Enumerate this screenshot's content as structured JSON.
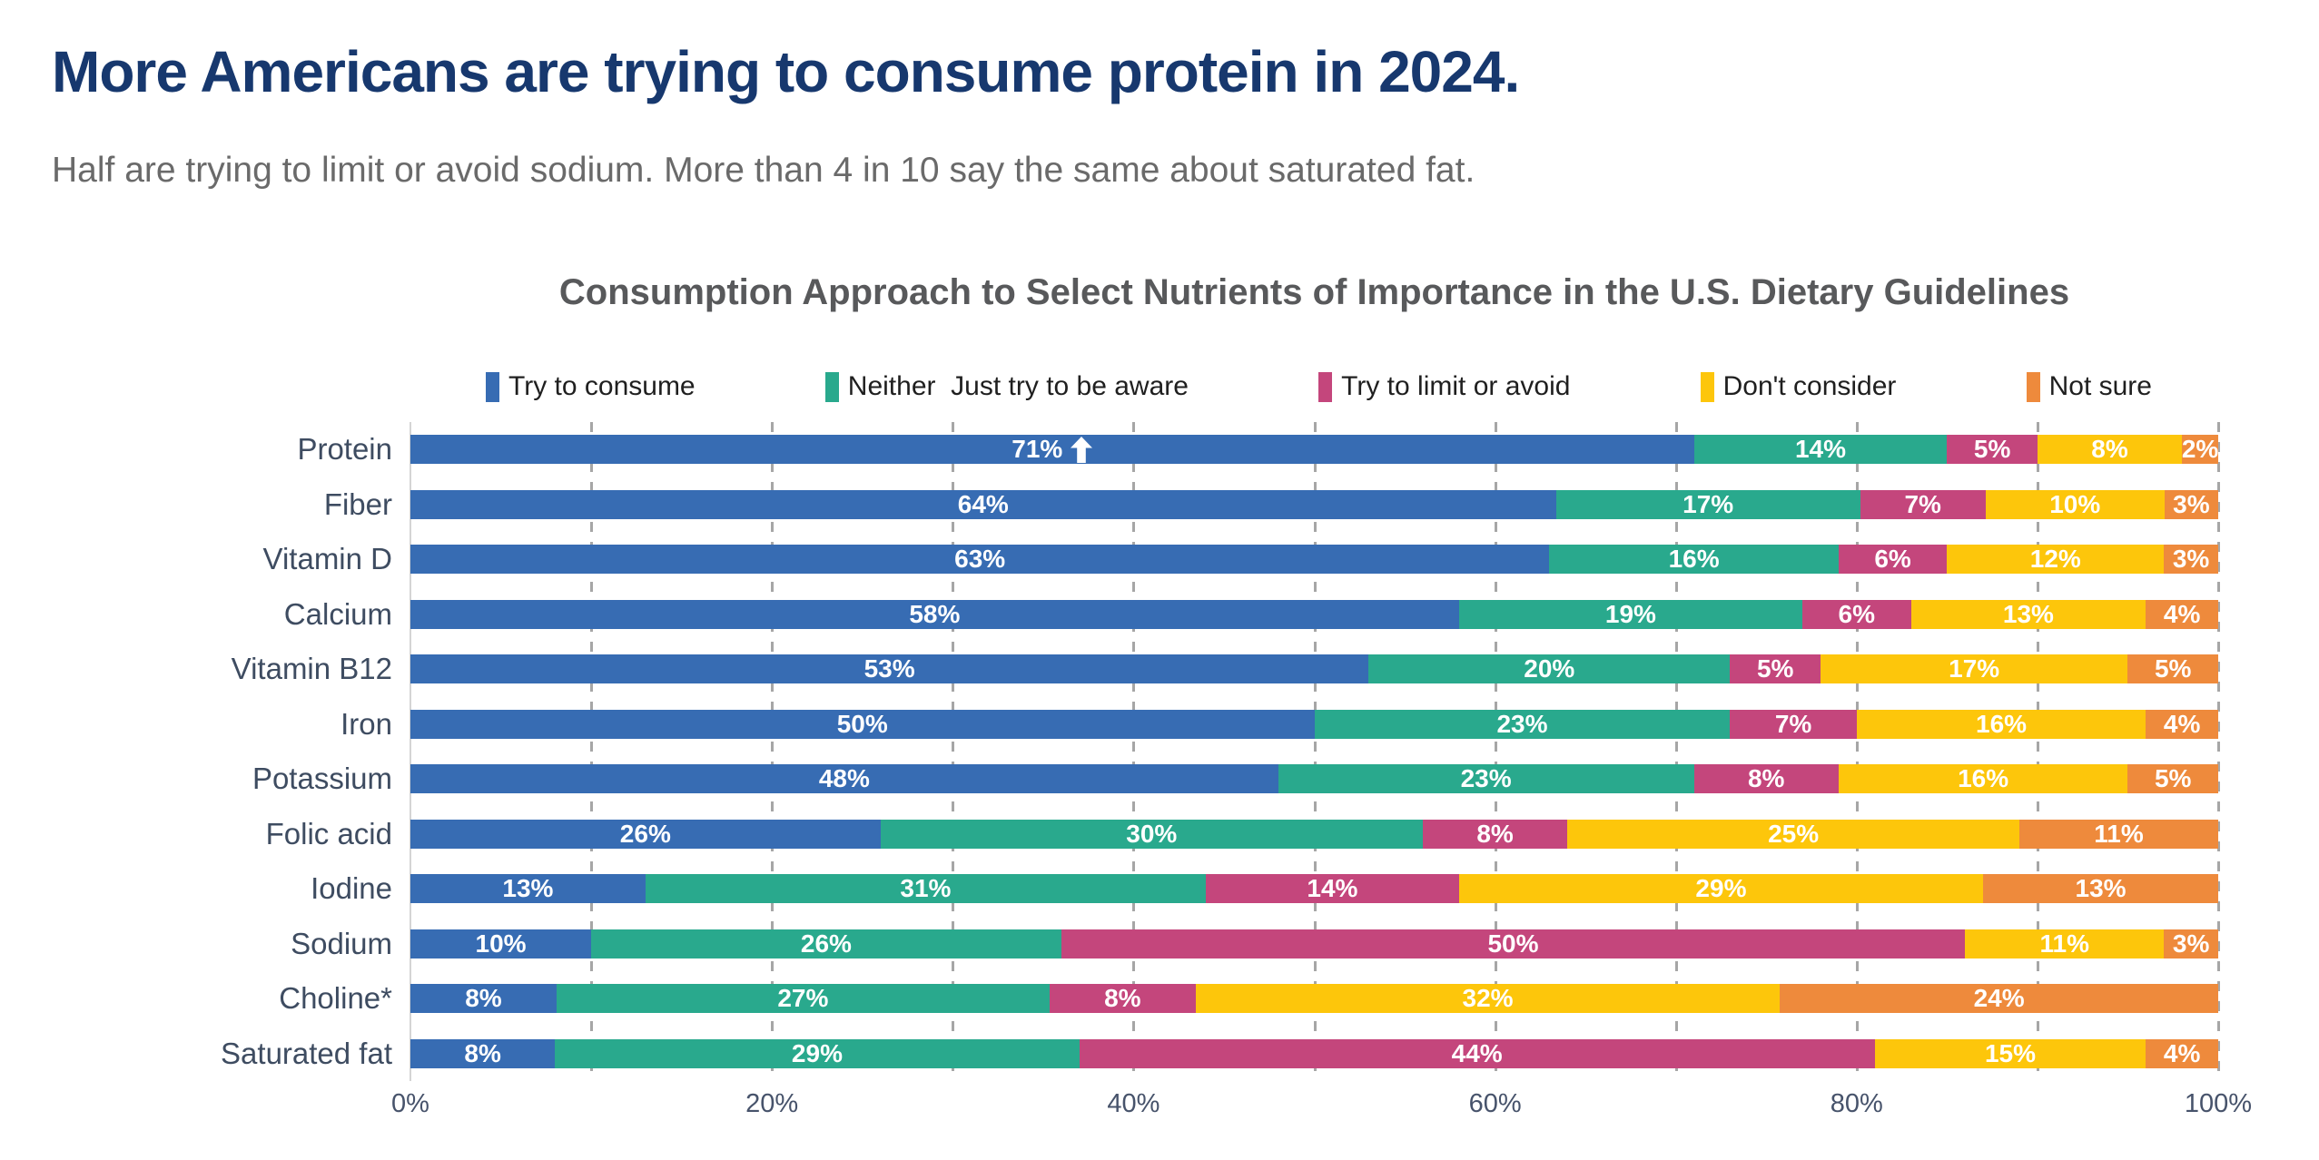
{
  "header": {
    "title": "More Americans are trying to consume protein in 2024.",
    "title_color": "#17386e",
    "subtitle": "Half are trying to limit or avoid sodium. More than 4 in 10 say the same about saturated fat.",
    "subtitle_color": "#6a6a6a"
  },
  "chart_data": {
    "type": "bar",
    "variant": "horizontal-stacked",
    "title": "Consumption Approach to Select Nutrients of Importance in the U.S. Dietary Guidelines",
    "title_color": "#58595b",
    "legend_position": "top",
    "value_label_format": "percent",
    "categories": [
      "Protein",
      "Fiber",
      "Vitamin D",
      "Calcium",
      "Vitamin B12",
      "Iron",
      "Potassium",
      "Folic acid",
      "Iodine",
      "Sodium",
      "Choline*",
      "Saturated fat"
    ],
    "series": [
      {
        "name": "Try to consume",
        "color": "#376cb3",
        "values": [
          71,
          64,
          63,
          58,
          53,
          50,
          48,
          26,
          13,
          10,
          8,
          8
        ]
      },
      {
        "name": "Neither  Just try to be aware",
        "color": "#29a98d",
        "values": [
          14,
          17,
          16,
          19,
          20,
          23,
          23,
          30,
          31,
          26,
          27,
          29
        ]
      },
      {
        "name": "Try to limit or avoid",
        "color": "#c4467c",
        "values": [
          5,
          7,
          6,
          6,
          5,
          7,
          8,
          8,
          14,
          50,
          8,
          44
        ]
      },
      {
        "name": "Don't consider",
        "color": "#fdc60b",
        "values": [
          8,
          10,
          12,
          13,
          17,
          16,
          16,
          25,
          29,
          11,
          32,
          15
        ]
      },
      {
        "name": "Not sure",
        "color": "#ee8a3c",
        "values": [
          2,
          3,
          3,
          4,
          5,
          4,
          5,
          11,
          13,
          3,
          24,
          4
        ]
      }
    ],
    "annotations": [
      {
        "category": "Protein",
        "series": "Try to consume",
        "symbol": "up-arrow"
      }
    ],
    "x_axis": {
      "ticks": [
        "0%",
        "20%",
        "40%",
        "60%",
        "80%",
        "100%"
      ],
      "range": [
        0,
        100
      ],
      "gridlines": "dashed gray, every 10%"
    },
    "grid_color": "#a6a6a6",
    "axis_label_color": "#47536b",
    "category_label_color": "#3e4c61"
  }
}
